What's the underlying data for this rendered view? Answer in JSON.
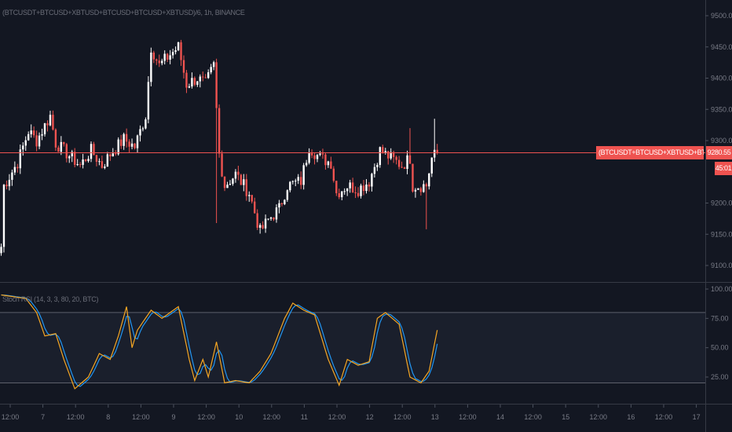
{
  "header": {
    "symbol_title": "(BTCUSDT+BTCUSD+XBTUSD+BTCUSD+BTCUSD+XBTUSD)/6, 1h, BINANCE"
  },
  "last_price": {
    "label": "(BTCUSDT+BTCUSD+XBTUSD+BTCUSD+BTCUSD+...",
    "value": "9280.55",
    "countdown": "45:01"
  },
  "indicator": {
    "title": "Stoch RSI (14, 3, 3, 80, 20, BTC)"
  },
  "colors": {
    "background": "#131722",
    "up": "#ffffff",
    "down": "#ef5350",
    "k_line": "#f5a623",
    "d_line": "#2196f3",
    "axis_text": "#787b86"
  },
  "chart_data": [
    {
      "type": "candlestick",
      "title": "(BTCUSDT+BTCUSD+XBTUSD+BTCUSD+BTCUSD+XBTUSD)/6, 1h, BINANCE",
      "interval": "1h",
      "ylim": [
        9080,
        9525
      ],
      "y_ticks": [
        "9500.00",
        "9450.00",
        "9400.00",
        "9350.00",
        "9300.00",
        "9250.00",
        "9200.00",
        "9150.00",
        "9100.00"
      ],
      "x_ticks": [
        "12:00",
        "7",
        "12:00",
        "8",
        "12:00",
        "9",
        "12:00",
        "10",
        "12:00",
        "11",
        "12:00",
        "12",
        "12:00",
        "13",
        "12:00",
        "14",
        "12:00",
        "15",
        "12:00",
        "16",
        "12:00",
        "17"
      ],
      "close_keyframes": [
        [
          0,
          9130
        ],
        [
          1,
          9228
        ],
        [
          6,
          9265
        ],
        [
          10,
          9315
        ],
        [
          13,
          9300
        ],
        [
          18,
          9340
        ],
        [
          20,
          9296
        ],
        [
          26,
          9272
        ],
        [
          29,
          9260
        ],
        [
          33,
          9284
        ],
        [
          37,
          9260
        ],
        [
          40,
          9278
        ],
        [
          45,
          9302
        ],
        [
          49,
          9290
        ],
        [
          53,
          9340
        ],
        [
          55,
          9450
        ],
        [
          58,
          9420
        ],
        [
          62,
          9438
        ],
        [
          65,
          9450
        ],
        [
          68,
          9390
        ],
        [
          72,
          9400
        ],
        [
          75,
          9390
        ],
        [
          78,
          9420
        ],
        [
          80,
          9278
        ],
        [
          82,
          9228
        ],
        [
          86,
          9246
        ],
        [
          91,
          9216
        ],
        [
          95,
          9154
        ],
        [
          98,
          9173
        ],
        [
          102,
          9191
        ],
        [
          105,
          9228
        ],
        [
          110,
          9235
        ],
        [
          113,
          9290
        ],
        [
          117,
          9272
        ],
        [
          121,
          9265
        ],
        [
          123,
          9216
        ],
        [
          127,
          9228
        ],
        [
          131,
          9222
        ],
        [
          135,
          9235
        ],
        [
          139,
          9284
        ],
        [
          143,
          9272
        ],
        [
          147,
          9260
        ],
        [
          150,
          9272
        ],
        [
          151,
          9228
        ],
        [
          156,
          9228
        ],
        [
          158,
          9272
        ],
        [
          160,
          9280.55
        ]
      ],
      "last_price": 9280.55
    },
    {
      "type": "line",
      "title": "Stoch RSI (14, 3, 3, 80, 20, BTC)",
      "ylim": [
        0,
        103
      ],
      "y_ticks": [
        "100.00",
        "75.00",
        "50.00",
        "25.00"
      ],
      "bands": [
        80,
        20
      ],
      "series": [
        {
          "name": "K",
          "keyframes": [
            [
              0,
              95
            ],
            [
              9,
              92
            ],
            [
              13,
              80
            ],
            [
              16,
              60
            ],
            [
              20,
              62
            ],
            [
              23,
              40
            ],
            [
              27,
              15
            ],
            [
              32,
              25
            ],
            [
              36,
              45
            ],
            [
              40,
              40
            ],
            [
              43,
              60
            ],
            [
              46,
              85
            ],
            [
              48,
              50
            ],
            [
              50,
              65
            ],
            [
              55,
              82
            ],
            [
              59,
              75
            ],
            [
              65,
              85
            ],
            [
              69,
              40
            ],
            [
              71,
              22
            ],
            [
              74,
              40
            ],
            [
              76,
              25
            ],
            [
              79,
              55
            ],
            [
              82,
              20
            ],
            [
              86,
              22
            ],
            [
              91,
              20
            ],
            [
              95,
              30
            ],
            [
              99,
              45
            ],
            [
              104,
              75
            ],
            [
              107,
              88
            ],
            [
              111,
              82
            ],
            [
              115,
              78
            ],
            [
              120,
              40
            ],
            [
              124,
              18
            ],
            [
              127,
              40
            ],
            [
              131,
              35
            ],
            [
              135,
              38
            ],
            [
              138,
              75
            ],
            [
              141,
              80
            ],
            [
              146,
              70
            ],
            [
              150,
              25
            ],
            [
              154,
              20
            ],
            [
              157,
              30
            ],
            [
              160,
              65
            ]
          ]
        },
        {
          "name": "D",
          "derived": "SMA3 of K"
        }
      ]
    }
  ]
}
